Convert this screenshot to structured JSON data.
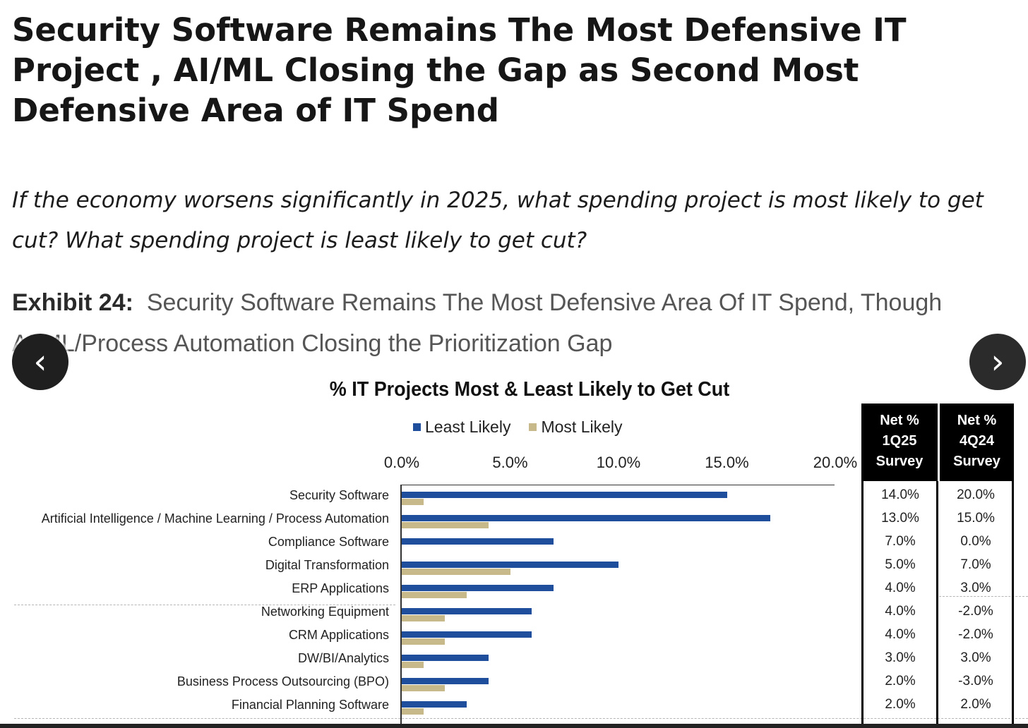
{
  "headline": "Security Software Remains The Most Defensive IT Project , AI/ML Closing the Gap as Second Most Defensive Area of IT Spend",
  "subtitle": "If the economy worsens significantly in 2025, what spending project is most likely to get cut? What spending project is least likely to get cut?",
  "exhibit": {
    "label": "Exhibit 24:",
    "text": "Security Software Remains The Most Defensive Area Of IT Spend, Though AI/ML/Process Automation Closing the Prioritization Gap"
  },
  "nav": {
    "prev": "‹",
    "next": "›"
  },
  "colors": {
    "least": "#1f4e9c",
    "most": "#c8b98a",
    "header_bg": "#000000"
  },
  "chart_data": {
    "type": "bar",
    "orientation": "horizontal",
    "title": "% IT Projects Most & Least Likely to Get Cut",
    "xlim": [
      0,
      20
    ],
    "x_ticks": [
      "0.0%",
      "5.0%",
      "10.0%",
      "15.0%",
      "20.0%"
    ],
    "legend_position": "top",
    "categories": [
      "Security Software",
      "Artificial Intelligence / Machine Learning / Process Automation",
      "Compliance Software",
      "Digital Transformation",
      "ERP Applications",
      "Networking Equipment",
      "CRM Applications",
      "DW/BI/Analytics",
      "Business Process Outsourcing (BPO)",
      "Financial Planning Software"
    ],
    "series": [
      {
        "name": "Least Likely",
        "values": [
          15,
          17,
          7,
          10,
          7,
          6,
          6,
          4,
          4,
          3
        ]
      },
      {
        "name": "Most Likely",
        "values": [
          1,
          4,
          0,
          5,
          3,
          2,
          2,
          1,
          2,
          1
        ]
      }
    ],
    "table": {
      "headers": [
        [
          "Net %",
          "1Q25",
          "Survey"
        ],
        [
          "Net %",
          "4Q24",
          "Survey"
        ]
      ],
      "net_1q25": [
        "14.0%",
        "13.0%",
        "7.0%",
        "5.0%",
        "4.0%",
        "4.0%",
        "4.0%",
        "3.0%",
        "2.0%",
        "2.0%"
      ],
      "net_4q24": [
        "20.0%",
        "15.0%",
        "0.0%",
        "7.0%",
        "3.0%",
        "-2.0%",
        "-2.0%",
        "3.0%",
        "-3.0%",
        "2.0%"
      ]
    }
  }
}
